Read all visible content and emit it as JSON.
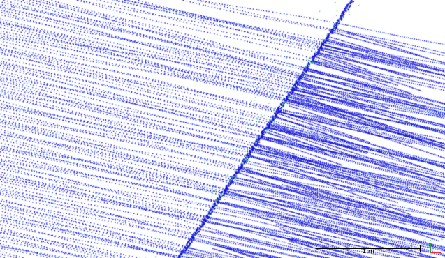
{
  "scale_bar": {
    "label": "1 m"
  },
  "colors": {
    "background": "#ffffff",
    "points_primary": "#1010d8",
    "points_secondary": "#2a6cf0",
    "points_highlight": "#20c080",
    "scale_bar": "#000000",
    "axis_x": "#e03030",
    "axis_y": "#20a040"
  },
  "icons": {
    "axis_triad": "axis-triad-icon"
  }
}
